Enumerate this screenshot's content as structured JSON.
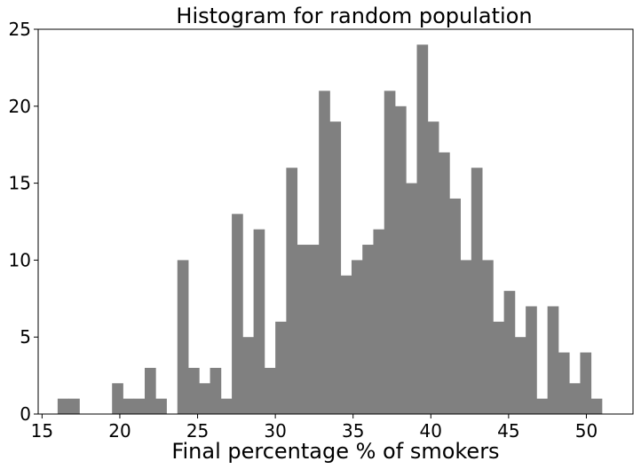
{
  "chart_data": {
    "type": "bar",
    "title": "Histogram for random population",
    "xlabel": "Final percentage % of smokers",
    "ylabel": "",
    "xlim": [
      14.75,
      53.0
    ],
    "ylim": [
      0,
      25
    ],
    "xticks": [
      15,
      20,
      25,
      30,
      35,
      40,
      45,
      50
    ],
    "yticks": [
      0,
      5,
      10,
      15,
      20,
      25
    ],
    "bar_color": "#808080",
    "grid": false,
    "bins": {
      "start": 16.0,
      "width": 0.7,
      "counts": [
        1,
        1,
        0,
        0,
        0,
        2,
        1,
        1,
        3,
        1,
        0,
        10,
        3,
        2,
        3,
        1,
        13,
        5,
        12,
        3,
        6,
        16,
        11,
        11,
        21,
        19,
        9,
        10,
        11,
        12,
        21,
        20,
        15,
        24,
        19,
        17,
        14,
        10,
        16,
        10,
        6,
        8,
        5,
        7,
        1,
        7,
        4,
        2,
        4,
        1
      ]
    }
  }
}
